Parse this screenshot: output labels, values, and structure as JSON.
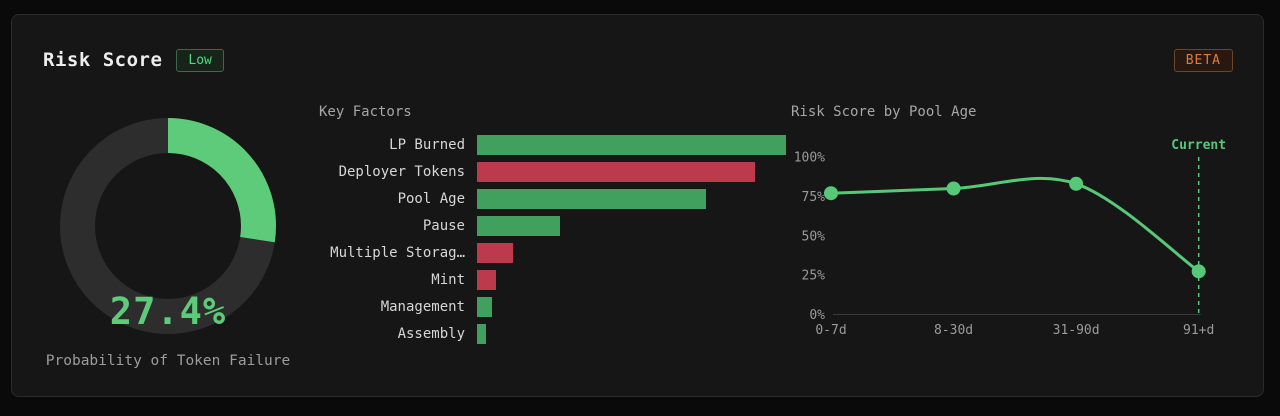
{
  "header": {
    "title": "Risk Score",
    "risk_badge": "Low",
    "beta_badge": "BETA"
  },
  "colors": {
    "card_background": "#161616",
    "card_border": "#2b2b2b",
    "accent_green_bright": "#57c878",
    "donut_green": "#5ecb7a",
    "donut_track": "#2d2d2d",
    "bar_green": "#42a05e",
    "bar_red": "#bd3a4c",
    "badge_green_text": "#4ade80",
    "badge_orange_text": "#dd7d3c",
    "muted_text": "#9c9c9c"
  },
  "chart_data": [
    {
      "id": "risk_donut",
      "type": "pie",
      "variant": "donut",
      "value": 27.4,
      "max": 100,
      "value_label": "27.4%",
      "label": "Probability of Token Failure",
      "arc_color": "#5ecb7a",
      "track_color": "#2d2d2d",
      "start_angle_deg": 0,
      "direction": "clockwise"
    },
    {
      "id": "key_factors",
      "type": "bar",
      "orientation": "horizontal",
      "title": "Key Factors",
      "categories": [
        "LP Burned",
        "Deployer Tokens",
        "Pool Age",
        "Pause",
        "Multiple Storag…",
        "Mint",
        "Management",
        "Assembly"
      ],
      "values": [
        100,
        90,
        74,
        27,
        11.5,
        6,
        5,
        2.8
      ],
      "value_unit": "percent-of-max-bar-width",
      "bar_sentiment": [
        "green",
        "red",
        "green",
        "green",
        "red",
        "red",
        "green",
        "green"
      ],
      "palette": {
        "green": "#42a05e",
        "red": "#bd3a4c"
      },
      "grid": false,
      "legend": false
    },
    {
      "id": "risk_by_pool_age",
      "type": "line",
      "title": "Risk Score by Pool Age",
      "x": [
        "0-7d",
        "8-30d",
        "31-90d",
        "91+d"
      ],
      "values": [
        77,
        80,
        83,
        27.4
      ],
      "ylim": [
        0,
        100
      ],
      "yticks": [
        {
          "value": 100,
          "label": "100%"
        },
        {
          "value": 75,
          "label": "75%"
        },
        {
          "value": 50,
          "label": "50%"
        },
        {
          "value": 25,
          "label": "25%"
        },
        {
          "value": 0,
          "label": "0%"
        }
      ],
      "line_color": "#57c878",
      "marker": "circle",
      "grid": false,
      "legend": false,
      "annotation": {
        "label": "Current",
        "x": "91+d",
        "style": "dashed-vertical-line"
      }
    }
  ]
}
